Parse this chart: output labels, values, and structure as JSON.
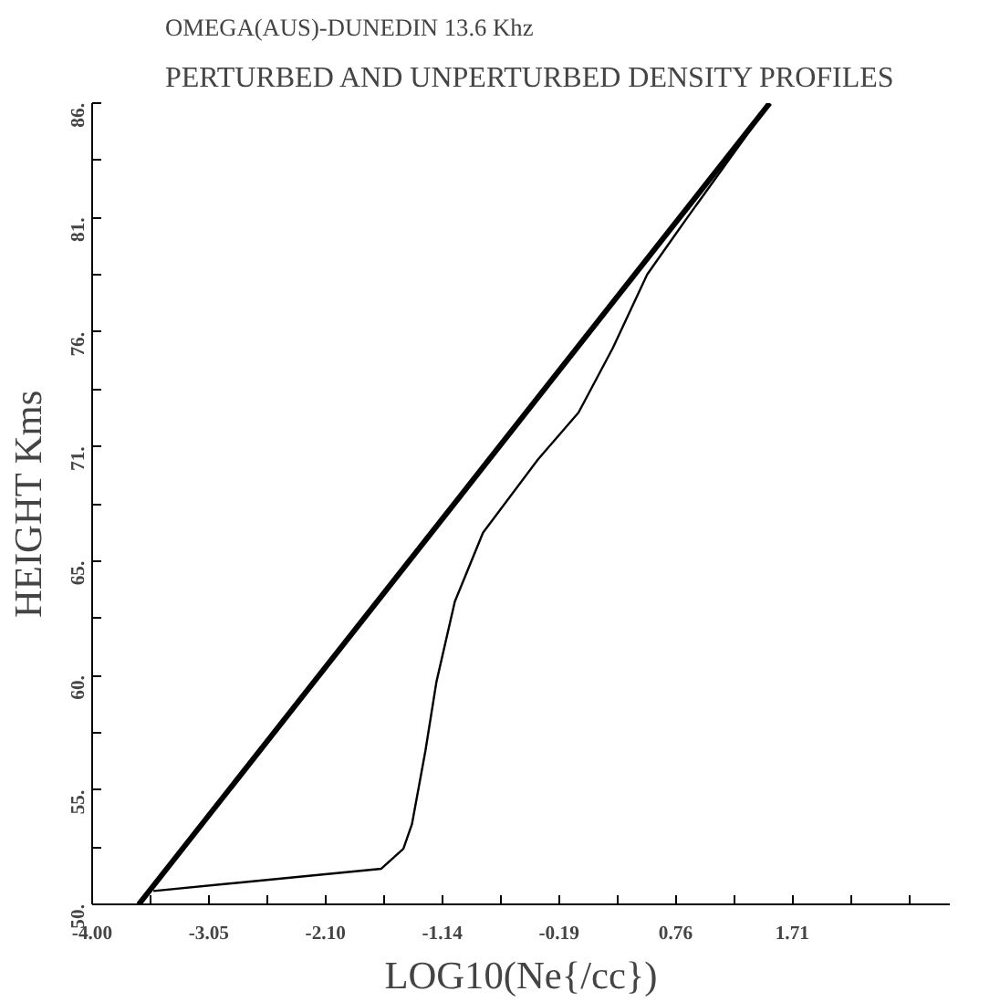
{
  "chart_data": {
    "type": "line",
    "subtitle": "OMEGA(AUS)-DUNEDIN   13.6 Khz",
    "title": "PERTURBED AND UNPERTURBED DENSITY PROFILES",
    "xlabel": "LOG10(Ne{/cc})",
    "ylabel": "HEIGHT Kms",
    "xlim": [
      -4.0,
      3.0
    ],
    "ylim": [
      50,
      86
    ],
    "xticks": [
      {
        "value": -4.0,
        "label": "-4.00"
      },
      {
        "value": -3.524,
        "label": null
      },
      {
        "value": -3.048,
        "label": "-3.05"
      },
      {
        "value": -2.571,
        "label": null
      },
      {
        "value": -2.095,
        "label": "-2.10"
      },
      {
        "value": -1.619,
        "label": null
      },
      {
        "value": -1.143,
        "label": "-1.14"
      },
      {
        "value": -0.667,
        "label": null
      },
      {
        "value": -0.19,
        "label": "-0.19"
      },
      {
        "value": 0.286,
        "label": null
      },
      {
        "value": 0.762,
        "label": "0.76"
      },
      {
        "value": 1.238,
        "label": null
      },
      {
        "value": 1.714,
        "label": "1.71"
      },
      {
        "value": 2.19,
        "label": null
      },
      {
        "value": 2.667,
        "label": null
      }
    ],
    "yticks": [
      {
        "value": 50,
        "label": "50."
      },
      {
        "value": 52.57,
        "label": null
      },
      {
        "value": 55.14,
        "label": "55."
      },
      {
        "value": 57.71,
        "label": null
      },
      {
        "value": 60.29,
        "label": "60."
      },
      {
        "value": 62.86,
        "label": null
      },
      {
        "value": 65.43,
        "label": "65."
      },
      {
        "value": 68,
        "label": null
      },
      {
        "value": 70.57,
        "label": "71."
      },
      {
        "value": 73.14,
        "label": null
      },
      {
        "value": 75.71,
        "label": "76."
      },
      {
        "value": 78.29,
        "label": null
      },
      {
        "value": 80.86,
        "label": "81."
      },
      {
        "value": 83.43,
        "label": null
      },
      {
        "value": 86,
        "label": "86."
      }
    ],
    "grid": false,
    "marker": "none",
    "line_style": "solid",
    "series": [
      {
        "color": "#000000",
        "x": [
          -3.62,
          1.53
        ],
        "values": [
          50,
          86
        ]
      },
      {
        "color": "#000000",
        "x": [
          -3.5,
          -1.64,
          -1.46,
          -1.39,
          -1.28,
          -1.19,
          -1.04,
          -0.81,
          -0.36,
          -0.03,
          0.25,
          0.53,
          0.85,
          1.53
        ],
        "values": [
          50.6,
          51.6,
          52.5,
          53.6,
          56.9,
          60.0,
          63.6,
          66.7,
          70.0,
          72.1,
          75.0,
          78.3,
          80.8,
          86
        ]
      }
    ]
  }
}
